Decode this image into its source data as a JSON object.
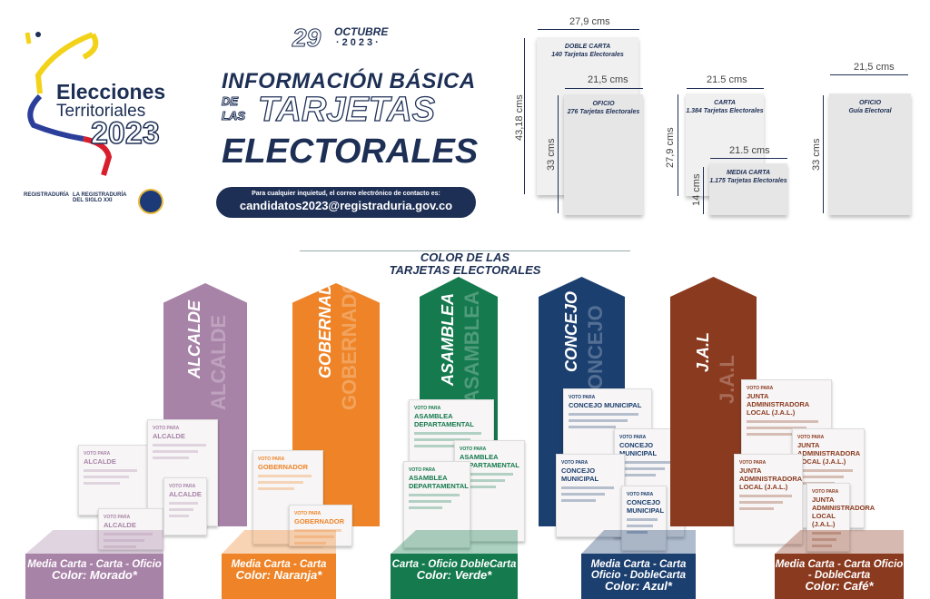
{
  "logo": {
    "line1": "Elecciones",
    "line2": "Territoriales",
    "year": "2023",
    "institutions": [
      "REGISTRADURÍA",
      "LA REGISTRADURÍA DEL SIGLO XXI"
    ]
  },
  "date": {
    "day": "29",
    "month": "OCTUBRE",
    "year": "·2023·"
  },
  "title": {
    "line1": "INFORMACIÓN BÁSICA",
    "de": "DE",
    "las": "LAS",
    "line2": "TARJETAS",
    "line3": "ELECTORALES"
  },
  "contact": {
    "label": "Para cualquier inquietud, el correo electrónico de contacto es:",
    "email": "candidatos2023@registraduria.gov.co"
  },
  "sizes": [
    {
      "name": "DOBLE CARTA",
      "desc": "140 Tarjetas Electorales",
      "width": "27,9 cms",
      "height": "43,18 cms"
    },
    {
      "name": "OFICIO",
      "desc": "276 Tarjetas Electorales",
      "width": "21,5 cms",
      "height": "33 cms"
    },
    {
      "name": "CARTA",
      "desc": "1.384 Tarjetas Electorales",
      "width": "21.5 cms",
      "height": "27,9 cms"
    },
    {
      "name": "MEDIA CARTA",
      "desc": "1.175 Tarjetas Electorales",
      "width": "21.5 cms",
      "height": "14 cms"
    },
    {
      "name": "OFICIO",
      "desc": "Guía Electoral",
      "width": "21,5 cms",
      "height": "33 cms"
    }
  ],
  "section": {
    "line1": "COLOR DE LAS",
    "line2": "TARJETAS ELECTORALES"
  },
  "card_prefix": "VOTO PARA",
  "columns": [
    {
      "name": "ALCALDE",
      "card": "ALCALDE",
      "formats": "Media Carta - Carta - Oficio",
      "color_label": "Color: Morado*",
      "color": "#a883a8"
    },
    {
      "name": "GOBERNADOR",
      "card": "GOBERNADOR",
      "formats": "Media Carta - Carta",
      "color_label": "Color: Naranja*",
      "color": "#ee8427"
    },
    {
      "name": "ASAMBLEA",
      "card": "ASAMBLEA DEPARTAMENTAL",
      "formats": "Carta - Oficio DobleCarta",
      "color_label": "Color: Verde*",
      "color": "#157a4e"
    },
    {
      "name": "CONCEJO",
      "card": "CONCEJO MUNICIPAL",
      "formats": "Media Carta - Carta Oficio - DobleCarta",
      "color_label": "Color: Azul*",
      "color": "#1b3f6f"
    },
    {
      "name": "J.A.L",
      "card": "JUNTA ADMINISTRADORA LOCAL (J.A.L.)",
      "formats": "Media Carta - Carta Oficio - DobleCarta",
      "color_label": "Color: Café*",
      "color": "#8a3a1f"
    }
  ]
}
